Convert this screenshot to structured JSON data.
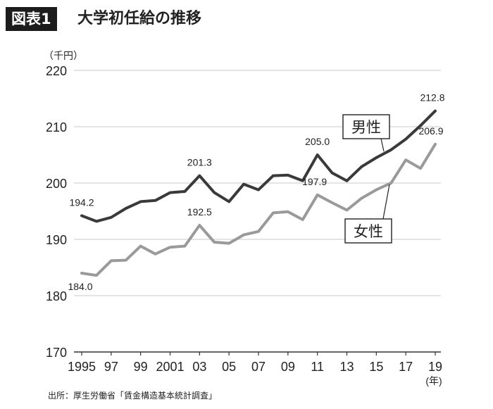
{
  "header": {
    "figure_label": "図表1",
    "title": "大学初任給の推移"
  },
  "chart_data": {
    "type": "line",
    "ylabel": "（千円）",
    "xlabel": "(年)",
    "ylim": [
      170,
      220
    ],
    "y_ticks": [
      170,
      180,
      190,
      200,
      210,
      220
    ],
    "x_ticks": [
      {
        "x": 1995,
        "label": "1995"
      },
      {
        "x": 1997,
        "label": "97"
      },
      {
        "x": 1999,
        "label": "99"
      },
      {
        "x": 2001,
        "label": "2001"
      },
      {
        "x": 2003,
        "label": "03"
      },
      {
        "x": 2005,
        "label": "05"
      },
      {
        "x": 2007,
        "label": "07"
      },
      {
        "x": 2009,
        "label": "09"
      },
      {
        "x": 2011,
        "label": "11"
      },
      {
        "x": 2013,
        "label": "13"
      },
      {
        "x": 2015,
        "label": "15"
      },
      {
        "x": 2017,
        "label": "17"
      },
      {
        "x": 2019,
        "label": "19"
      }
    ],
    "x": [
      1995,
      1996,
      1997,
      1998,
      1999,
      2000,
      2001,
      2002,
      2003,
      2004,
      2005,
      2006,
      2007,
      2008,
      2009,
      2010,
      2011,
      2012,
      2013,
      2014,
      2015,
      2016,
      2017,
      2018,
      2019
    ],
    "grid": "horizontal",
    "series": [
      {
        "name": "男性",
        "color": "#3a3a3a",
        "values": [
          194.2,
          193.2,
          193.9,
          195.5,
          196.7,
          196.9,
          198.3,
          198.5,
          201.3,
          198.3,
          196.7,
          199.8,
          198.8,
          201.3,
          201.4,
          200.4,
          205.0,
          201.8,
          200.4,
          202.9,
          204.5,
          205.9,
          207.8,
          210.2,
          212.8
        ]
      },
      {
        "name": "女性",
        "color": "#9a9a9a",
        "values": [
          184.0,
          183.6,
          186.2,
          186.3,
          188.8,
          187.4,
          188.6,
          188.8,
          192.5,
          189.5,
          189.3,
          190.8,
          191.4,
          194.7,
          194.9,
          193.5,
          197.9,
          196.5,
          195.2,
          197.3,
          198.8,
          200.0,
          204.1,
          202.6,
          206.9
        ]
      }
    ],
    "data_labels": [
      {
        "series": 0,
        "x": 1995,
        "text": "194.2"
      },
      {
        "series": 0,
        "x": 2003,
        "text": "201.3"
      },
      {
        "series": 0,
        "x": 2011,
        "text": "205.0"
      },
      {
        "series": 0,
        "x": 2019,
        "text": "212.8"
      },
      {
        "series": 1,
        "x": 1995,
        "text": "184.0"
      },
      {
        "series": 1,
        "x": 2003,
        "text": "192.5"
      },
      {
        "series": 1,
        "x": 2011,
        "text": "197.9"
      },
      {
        "series": 1,
        "x": 2019,
        "text": "206.9"
      }
    ]
  },
  "footer": {
    "source": "出所：厚生労働省「賃金構造基本統計調査」"
  }
}
